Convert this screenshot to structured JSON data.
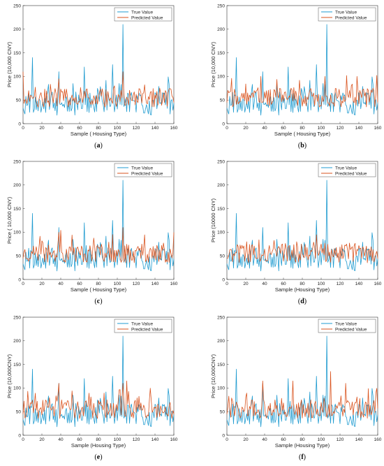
{
  "colors": {
    "true_series": "#1f9bd0",
    "predicted_series": "#d9531e",
    "axis": "#333333",
    "background": "#ffffff"
  },
  "chart_data": [
    {
      "panel": "(a)",
      "caption_open": "(",
      "caption_letter": "a",
      "caption_close": ")",
      "type": "line",
      "xlabel": "Sample ( Housing Type)",
      "ylabel": "Price (10,000 CNY)",
      "xlim": [
        0,
        160
      ],
      "ylim": [
        0,
        250
      ],
      "xticks": [
        0,
        20,
        40,
        60,
        80,
        100,
        120,
        140,
        160
      ],
      "yticks": [
        0,
        50,
        100,
        150,
        200,
        250
      ],
      "grid": false,
      "legend_position": "top-right",
      "series": [
        {
          "name": "True Value",
          "seed": 11,
          "peaks": [
            [
              10,
              140
            ],
            [
              38,
              110
            ],
            [
              65,
              120
            ],
            [
              95,
              125
            ],
            [
              106,
              210
            ]
          ]
        },
        {
          "name": "Predicted Value",
          "seed": 21,
          "peaks": [
            [
              0,
              110
            ],
            [
              38,
              95
            ],
            [
              106,
              110
            ]
          ]
        }
      ]
    },
    {
      "panel": "(b)",
      "caption_open": "(",
      "caption_letter": "b",
      "caption_close": ")",
      "type": "line",
      "xlabel": "Sample ( Housing Type)",
      "ylabel": "Price (10,000 CNY)",
      "xlim": [
        0,
        160
      ],
      "ylim": [
        0,
        250
      ],
      "xticks": [
        0,
        20,
        40,
        60,
        80,
        100,
        120,
        140,
        160
      ],
      "yticks": [
        0,
        50,
        100,
        150,
        200,
        250
      ],
      "grid": false,
      "legend_position": "top-right",
      "series": [
        {
          "name": "True Value",
          "seed": 11,
          "peaks": [
            [
              10,
              140
            ],
            [
              38,
              110
            ],
            [
              65,
              120
            ],
            [
              95,
              125
            ],
            [
              106,
              210
            ]
          ]
        },
        {
          "name": "Predicted Value",
          "seed": 22,
          "peaks": [
            [
              36,
              100
            ],
            [
              104,
              100
            ],
            [
              138,
              100
            ]
          ]
        }
      ]
    },
    {
      "panel": "(c)",
      "caption_open": "(",
      "caption_letter": "c",
      "caption_close": ")",
      "type": "line",
      "xlabel": "Sample ( Housing Type)",
      "ylabel": "Price ( 10,000 CNY)",
      "xlim": [
        0,
        160
      ],
      "ylim": [
        0,
        250
      ],
      "xticks": [
        0,
        20,
        40,
        60,
        80,
        100,
        120,
        140,
        160
      ],
      "yticks": [
        0,
        50,
        100,
        150,
        200,
        250
      ],
      "grid": false,
      "legend_position": "top-right",
      "series": [
        {
          "name": "True Value",
          "seed": 11,
          "peaks": [
            [
              10,
              140
            ],
            [
              38,
              110
            ],
            [
              65,
              120
            ],
            [
              95,
              125
            ],
            [
              106,
              210
            ]
          ]
        },
        {
          "name": "Predicted Value",
          "seed": 23,
          "peaks": [
            [
              38,
              100
            ],
            [
              95,
              95
            ],
            [
              106,
              110
            ]
          ]
        }
      ]
    },
    {
      "panel": "(d)",
      "caption_open": "(",
      "caption_letter": "d",
      "caption_close": ")",
      "type": "line",
      "xlabel": "Sample (Housing Type)",
      "ylabel": "Price (10000 CNY)",
      "xlim": [
        0,
        160
      ],
      "ylim": [
        0,
        250
      ],
      "xticks": [
        0,
        20,
        40,
        60,
        80,
        100,
        120,
        140,
        160
      ],
      "yticks": [
        0,
        50,
        100,
        150,
        200,
        250
      ],
      "grid": false,
      "legend_position": "top-right",
      "series": [
        {
          "name": "True Value",
          "seed": 11,
          "peaks": [
            [
              10,
              140
            ],
            [
              38,
              110
            ],
            [
              65,
              120
            ],
            [
              95,
              125
            ],
            [
              106,
              210
            ]
          ]
        },
        {
          "name": "Predicted Value",
          "seed": 24,
          "peaks": [
            [
              55,
              70
            ],
            [
              100,
              75
            ]
          ]
        }
      ]
    },
    {
      "panel": "(e)",
      "caption_open": "(",
      "caption_letter": "e",
      "caption_close": ")",
      "type": "line",
      "xlabel": "Sample (Housing Type)",
      "ylabel": "Price (10,000CNY)",
      "xlim": [
        0,
        160
      ],
      "ylim": [
        0,
        250
      ],
      "xticks": [
        0,
        20,
        40,
        60,
        80,
        100,
        120,
        140,
        160
      ],
      "yticks": [
        0,
        50,
        100,
        150,
        200,
        250
      ],
      "grid": false,
      "legend_position": "top-right",
      "series": [
        {
          "name": "True Value",
          "seed": 11,
          "peaks": [
            [
              10,
              140
            ],
            [
              38,
              110
            ],
            [
              65,
              120
            ],
            [
              95,
              125
            ],
            [
              106,
              210
            ]
          ]
        },
        {
          "name": "Predicted Value",
          "seed": 25,
          "peaks": [
            [
              38,
              110
            ],
            [
              106,
              110
            ],
            [
              110,
              115
            ]
          ]
        }
      ]
    },
    {
      "panel": "(f)",
      "caption_open": "(",
      "caption_letter": "f",
      "caption_close": ")",
      "type": "line",
      "xlabel": "Sample (Housing Type)",
      "ylabel": "Price (10,000CNY)",
      "xlim": [
        0,
        160
      ],
      "ylim": [
        0,
        250
      ],
      "xticks": [
        0,
        20,
        40,
        60,
        80,
        100,
        120,
        140,
        160
      ],
      "yticks": [
        0,
        50,
        100,
        150,
        200,
        250
      ],
      "grid": false,
      "legend_position": "top-right",
      "series": [
        {
          "name": "True Value",
          "seed": 11,
          "peaks": [
            [
              10,
              140
            ],
            [
              38,
              110
            ],
            [
              65,
              120
            ],
            [
              95,
              125
            ],
            [
              106,
              210
            ]
          ]
        },
        {
          "name": "Predicted Value",
          "seed": 26,
          "peaks": [
            [
              38,
              115
            ],
            [
              70,
              115
            ],
            [
              110,
              135
            ],
            [
              126,
              110
            ]
          ]
        }
      ]
    }
  ]
}
